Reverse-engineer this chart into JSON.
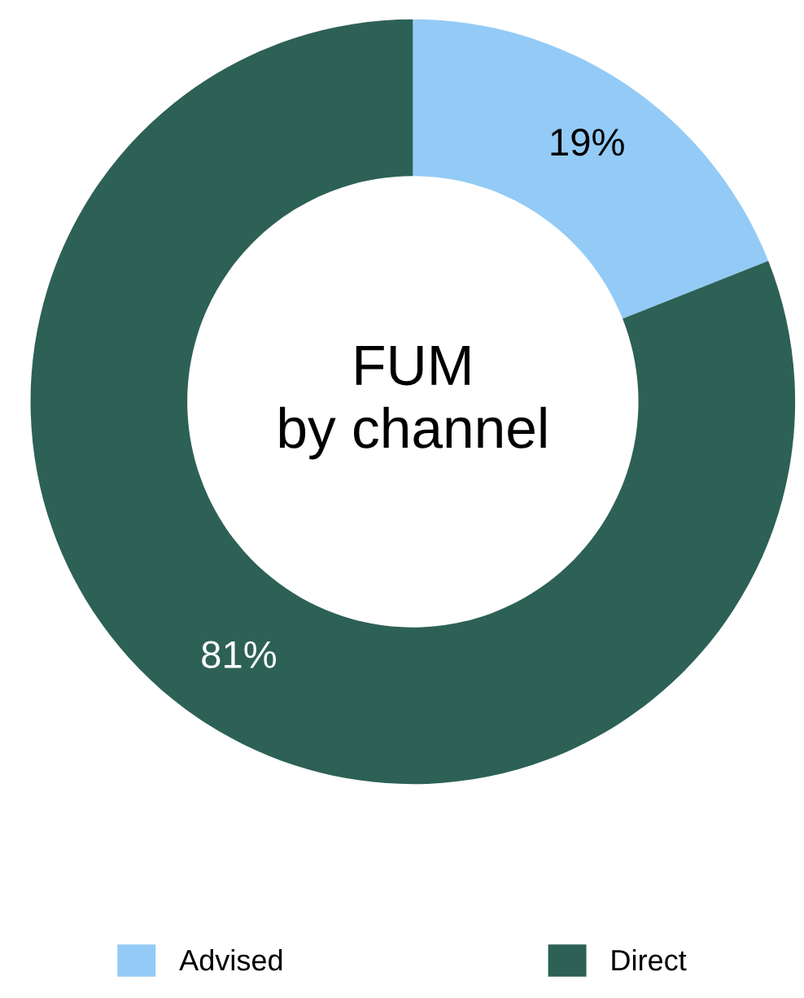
{
  "chart_data": {
    "type": "donut",
    "title": "FUM\nby channel",
    "categories": [
      "Advised",
      "Direct"
    ],
    "values": [
      19,
      81
    ],
    "colors": [
      "#93cbf6",
      "#2d6155"
    ],
    "value_labels": [
      "19%",
      "81%"
    ],
    "legend": "bottom"
  }
}
